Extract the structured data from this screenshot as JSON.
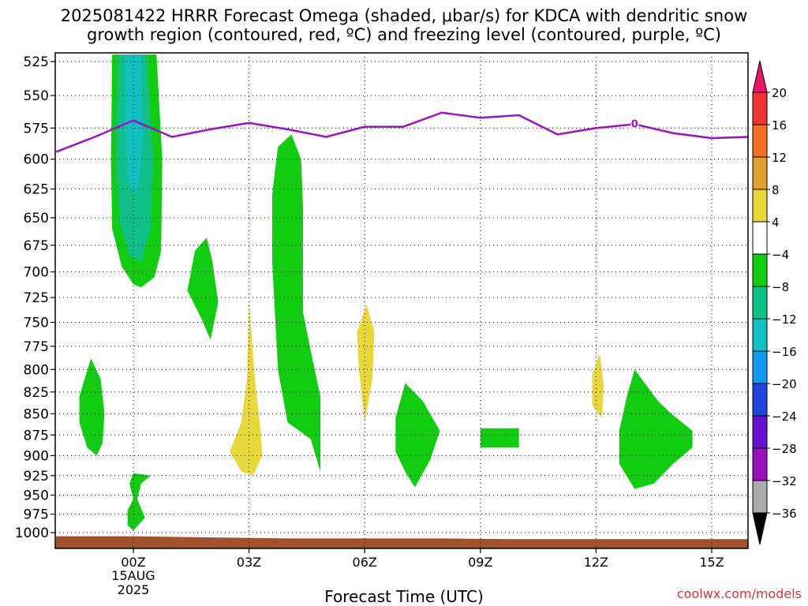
{
  "header": {
    "title_line1": "2025081422 HRRR Forecast Omega (shaded, μbar/s) for KDCA with dendritic snow",
    "title_line2": "growth region (contoured, red, ºC) and freezing level (contoured, purple, ºC)"
  },
  "footer": {
    "credit": "coolwx.com/models"
  },
  "chart_data": {
    "type": "contour",
    "xlabel": "Forecast Time (UTC)",
    "x_ticks": [
      {
        "hour": 0,
        "label": "00Z",
        "sub1": "15AUG",
        "sub2": "2025"
      },
      {
        "hour": 3,
        "label": "03Z",
        "sub1": "",
        "sub2": ""
      },
      {
        "hour": 6,
        "label": "06Z",
        "sub1": "",
        "sub2": ""
      },
      {
        "hour": 9,
        "label": "09Z",
        "sub1": "",
        "sub2": ""
      },
      {
        "hour": 12,
        "label": "12Z",
        "sub1": "",
        "sub2": ""
      },
      {
        "hour": 15,
        "label": "15Z",
        "sub1": "",
        "sub2": ""
      }
    ],
    "xlim": [
      -2,
      16
    ],
    "y_ticks": [
      525,
      550,
      575,
      600,
      625,
      650,
      675,
      700,
      725,
      750,
      775,
      800,
      825,
      850,
      875,
      900,
      925,
      950,
      975,
      1000
    ],
    "ylim": [
      520,
      1015
    ],
    "y_scale": "log-pressure",
    "grid": true,
    "colorbar": {
      "levels": [
        "20",
        "16",
        "12",
        "8",
        "4",
        "−4",
        "−8",
        "−12",
        "−16",
        "−20",
        "−24",
        "−28",
        "−32",
        "−36"
      ],
      "colors": [
        "#ee1166",
        "#ee3333",
        "#f07020",
        "#e0a030",
        "#e8d83a",
        "#ffffff",
        "#11cc11",
        "#11c088",
        "#11c0c0",
        "#1199ee",
        "#2244dd",
        "#6611cc",
        "#9911bb",
        "#aaaaaa",
        "#000000"
      ]
    },
    "freezing_level": {
      "label": "0",
      "label_hour": 13,
      "points": [
        [
          -2,
          594
        ],
        [
          -1,
          582
        ],
        [
          0,
          569
        ],
        [
          1,
          582
        ],
        [
          2,
          576
        ],
        [
          3,
          571
        ],
        [
          4,
          576
        ],
        [
          5,
          582
        ],
        [
          6,
          574
        ],
        [
          7,
          574
        ],
        [
          8,
          563
        ],
        [
          9,
          567
        ],
        [
          10,
          565
        ],
        [
          11,
          580
        ],
        [
          12,
          575
        ],
        [
          13,
          572
        ],
        [
          14,
          579
        ],
        [
          15,
          583
        ],
        [
          16,
          582
        ]
      ]
    },
    "regions": [
      {
        "name": "green",
        "color": "#11cc11",
        "points": [
          [
            -0.55,
            520
          ],
          [
            0.6,
            520
          ],
          [
            0.75,
            600
          ],
          [
            0.72,
            680
          ],
          [
            0.55,
            705
          ],
          [
            0.2,
            715
          ],
          [
            0,
            712
          ],
          [
            -0.3,
            695
          ],
          [
            -0.55,
            660
          ],
          [
            -0.58,
            600
          ]
        ]
      },
      {
        "name": "teal",
        "color": "#11c088",
        "points": [
          [
            -0.4,
            520
          ],
          [
            0.35,
            520
          ],
          [
            0.5,
            600
          ],
          [
            0.45,
            660
          ],
          [
            0.2,
            690
          ],
          [
            -0.1,
            685
          ],
          [
            -0.35,
            655
          ],
          [
            -0.45,
            600
          ]
        ]
      },
      {
        "name": "cyan",
        "color": "#11c0c0",
        "points": [
          [
            -0.2,
            520
          ],
          [
            0.2,
            520
          ],
          [
            0.25,
            580
          ],
          [
            0.15,
            620
          ],
          [
            0,
            630
          ],
          [
            -0.15,
            615
          ],
          [
            -0.22,
            575
          ]
        ]
      },
      {
        "name": "green",
        "color": "#11cc11",
        "points": [
          [
            1.9,
            668
          ],
          [
            2.05,
            690
          ],
          [
            2.2,
            730
          ],
          [
            2.0,
            768
          ],
          [
            1.75,
            745
          ],
          [
            1.4,
            718
          ],
          [
            1.6,
            680
          ]
        ]
      },
      {
        "name": "green",
        "color": "#11cc11",
        "points": [
          [
            -1.1,
            788
          ],
          [
            -0.85,
            810
          ],
          [
            -0.75,
            850
          ],
          [
            -0.8,
            885
          ],
          [
            -0.95,
            900
          ],
          [
            -1.2,
            890
          ],
          [
            -1.4,
            860
          ],
          [
            -1.4,
            830
          ]
        ]
      },
      {
        "name": "green",
        "color": "#11cc11",
        "points": [
          [
            0.0,
            922
          ],
          [
            0.45,
            925
          ],
          [
            0.2,
            935
          ],
          [
            0.1,
            955
          ],
          [
            0.3,
            980
          ],
          [
            0.0,
            997
          ],
          [
            -0.15,
            990
          ],
          [
            -0.15,
            970
          ],
          [
            0.0,
            955
          ],
          [
            -0.1,
            935
          ]
        ]
      },
      {
        "name": "green",
        "color": "#11cc11",
        "points": [
          [
            4.1,
            580
          ],
          [
            4.35,
            600
          ],
          [
            4.4,
            640
          ],
          [
            4.4,
            740
          ],
          [
            4.65,
            790
          ],
          [
            4.85,
            830
          ],
          [
            4.85,
            880
          ],
          [
            4.85,
            920
          ],
          [
            4.6,
            880
          ],
          [
            4.0,
            860
          ],
          [
            3.75,
            800
          ],
          [
            3.6,
            690
          ],
          [
            3.6,
            630
          ],
          [
            3.75,
            590
          ]
        ]
      },
      {
        "name": "yellow",
        "color": "#e8d83a",
        "points": [
          [
            3.0,
            728
          ],
          [
            3.15,
            810
          ],
          [
            3.3,
            870
          ],
          [
            3.35,
            900
          ],
          [
            3.1,
            925
          ],
          [
            2.8,
            920
          ],
          [
            2.5,
            895
          ],
          [
            2.8,
            860
          ],
          [
            2.95,
            810
          ]
        ]
      },
      {
        "name": "yellow",
        "color": "#e8d83a",
        "points": [
          [
            6.05,
            732
          ],
          [
            6.25,
            760
          ],
          [
            6.2,
            810
          ],
          [
            6.0,
            860
          ],
          [
            5.85,
            800
          ],
          [
            5.8,
            760
          ]
        ]
      },
      {
        "name": "green",
        "color": "#11cc11",
        "points": [
          [
            7.05,
            815
          ],
          [
            7.5,
            835
          ],
          [
            7.95,
            870
          ],
          [
            7.7,
            905
          ],
          [
            7.3,
            940
          ],
          [
            7.05,
            920
          ],
          [
            6.8,
            895
          ],
          [
            6.8,
            855
          ]
        ]
      },
      {
        "name": "green",
        "color": "#11cc11",
        "points": [
          [
            9.0,
            867
          ],
          [
            10.0,
            867
          ],
          [
            10.0,
            890
          ],
          [
            9.0,
            890
          ]
        ]
      },
      {
        "name": "yellow",
        "color": "#e8d83a",
        "points": [
          [
            12.1,
            783
          ],
          [
            12.2,
            820
          ],
          [
            12.15,
            855
          ],
          [
            11.9,
            840
          ],
          [
            11.9,
            805
          ]
        ]
      },
      {
        "name": "green",
        "color": "#11cc11",
        "points": [
          [
            13.0,
            800
          ],
          [
            13.6,
            835
          ],
          [
            13.95,
            850
          ],
          [
            14.5,
            870
          ],
          [
            14.5,
            890
          ],
          [
            14.0,
            910
          ],
          [
            13.5,
            935
          ],
          [
            13.0,
            942
          ],
          [
            12.6,
            910
          ],
          [
            12.6,
            870
          ],
          [
            12.8,
            830
          ]
        ]
      }
    ],
    "terrain": {
      "color": "#a0522d",
      "points": [
        [
          -2,
          1005
        ],
        [
          0,
          1005
        ],
        [
          4,
          1008
        ],
        [
          8,
          1008
        ],
        [
          10,
          1009
        ],
        [
          12,
          1009
        ],
        [
          16,
          1009
        ]
      ]
    }
  }
}
